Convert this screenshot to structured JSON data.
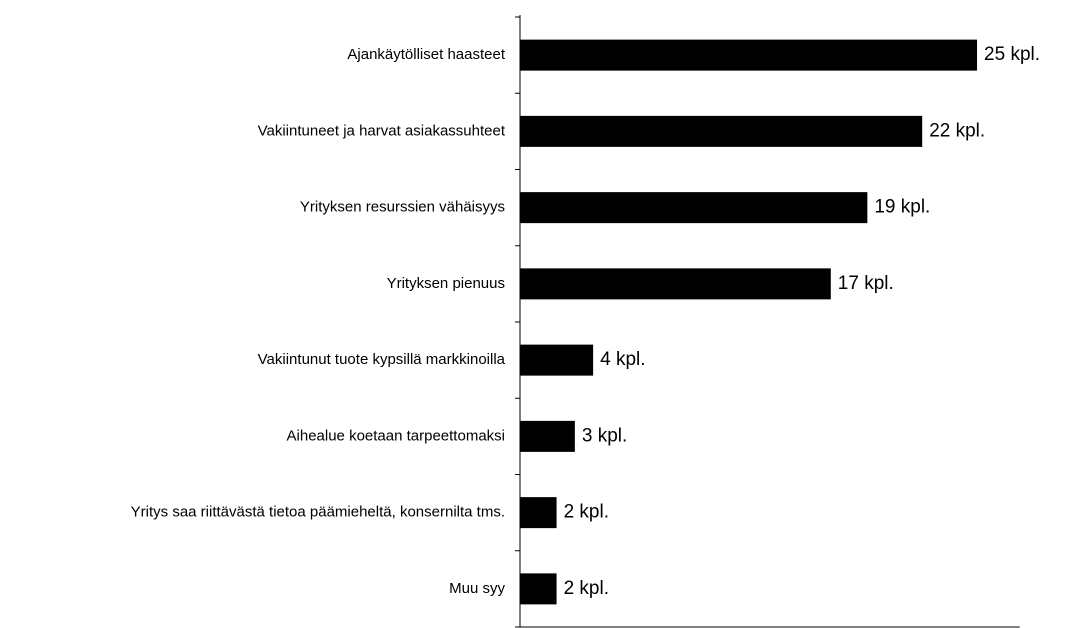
{
  "chart_data": {
    "type": "hbar",
    "categories": [
      "Ajankäytölliset haasteet",
      "Vakiintuneet ja harvat asiakassuhteet",
      "Yrityksen resurssien vähäisyys",
      "Yrityksen pienuus",
      "Vakiintunut tuote kypsillä markkinoilla",
      "Aihealue koetaan tarpeettomaksi",
      "Yritys saa riittävästä tietoa päämieheltä, konsernilta tms.",
      "Muu syy"
    ],
    "values": [
      25,
      22,
      19,
      17,
      4,
      3,
      2,
      2
    ],
    "value_labels": [
      "25 kpl.",
      "22 kpl.",
      "19 kpl.",
      "17 kpl.",
      "4 kpl.",
      "3 kpl.",
      "2 kpl.",
      "2 kpl."
    ],
    "color": "#000000",
    "xlim": [
      0,
      27
    ]
  }
}
